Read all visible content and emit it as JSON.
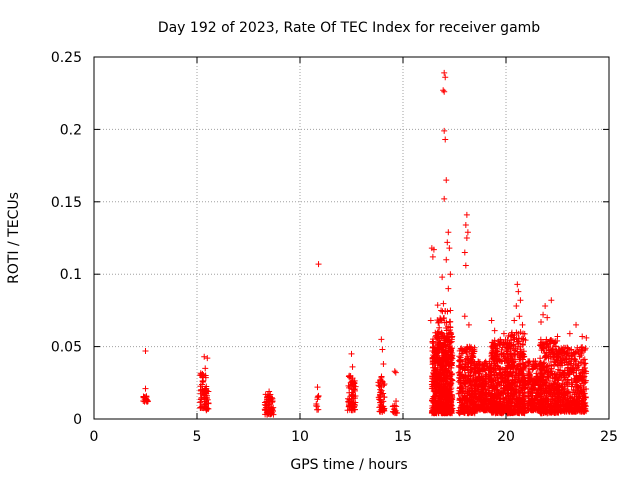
{
  "chart_data": {
    "type": "scatter",
    "title": "Day 192 of 2023, Rate Of TEC Index for receiver gamb",
    "xlabel": "GPS time / hours",
    "ylabel": "ROTI / TECUs",
    "xlim": [
      0,
      25
    ],
    "ylim": [
      0,
      0.25
    ],
    "x_ticks": [
      0,
      5,
      10,
      15,
      20,
      25
    ],
    "x_tick_labels": [
      "0",
      "5",
      "10",
      "15",
      "20",
      "25"
    ],
    "y_ticks": [
      0,
      0.05,
      0.1,
      0.15,
      0.2,
      0.25
    ],
    "y_tick_labels": [
      "0",
      "0.05",
      "0.1",
      "0.15",
      "0.2",
      "0.25"
    ],
    "grid": true,
    "marker": "+",
    "color": "#ff0000",
    "outliers": [
      [
        2.5,
        0.047
      ],
      [
        2.5,
        0.021
      ],
      [
        2.45,
        0.015
      ],
      [
        2.55,
        0.013
      ],
      [
        5.35,
        0.043
      ],
      [
        5.5,
        0.042
      ],
      [
        5.4,
        0.035
      ],
      [
        8.5,
        0.019
      ],
      [
        10.9,
        0.107
      ],
      [
        10.85,
        0.022
      ],
      [
        10.9,
        0.016
      ],
      [
        12.5,
        0.045
      ],
      [
        12.55,
        0.036
      ],
      [
        13.95,
        0.055
      ],
      [
        14.0,
        0.048
      ],
      [
        14.05,
        0.038
      ],
      [
        13.9,
        0.027
      ],
      [
        14.6,
        0.033
      ],
      [
        14.65,
        0.032
      ],
      [
        16.4,
        0.118
      ],
      [
        16.45,
        0.112
      ],
      [
        16.5,
        0.117
      ],
      [
        16.35,
        0.068
      ],
      [
        17.0,
        0.239
      ],
      [
        17.05,
        0.236
      ],
      [
        16.95,
        0.227
      ],
      [
        17.0,
        0.226
      ],
      [
        17.0,
        0.199
      ],
      [
        17.05,
        0.193
      ],
      [
        17.1,
        0.165
      ],
      [
        17.0,
        0.152
      ],
      [
        17.2,
        0.129
      ],
      [
        17.15,
        0.122
      ],
      [
        17.25,
        0.118
      ],
      [
        17.1,
        0.11
      ],
      [
        17.3,
        0.1
      ],
      [
        16.9,
        0.098
      ],
      [
        17.2,
        0.09
      ],
      [
        18.1,
        0.141
      ],
      [
        18.05,
        0.134
      ],
      [
        18.15,
        0.129
      ],
      [
        18.1,
        0.125
      ],
      [
        18.0,
        0.115
      ],
      [
        18.05,
        0.106
      ],
      [
        18.2,
        0.065
      ],
      [
        18.0,
        0.071
      ],
      [
        19.3,
        0.068
      ],
      [
        19.45,
        0.061
      ],
      [
        19.9,
        0.059
      ],
      [
        20.55,
        0.093
      ],
      [
        20.6,
        0.088
      ],
      [
        20.7,
        0.082
      ],
      [
        20.5,
        0.078
      ],
      [
        20.65,
        0.071
      ],
      [
        20.8,
        0.065
      ],
      [
        20.4,
        0.068
      ],
      [
        21.7,
        0.067
      ],
      [
        21.8,
        0.072
      ],
      [
        21.9,
        0.078
      ],
      [
        22.0,
        0.07
      ],
      [
        22.2,
        0.082
      ],
      [
        22.5,
        0.057
      ],
      [
        23.1,
        0.059
      ],
      [
        23.4,
        0.065
      ],
      [
        23.7,
        0.057
      ],
      [
        23.9,
        0.056
      ]
    ],
    "clusters": [
      {
        "x": 2.5,
        "dx": 0.12,
        "ymin": 0.012,
        "ymax": 0.016,
        "n": 18
      },
      {
        "x": 5.3,
        "dx": 0.15,
        "ymin": 0.007,
        "ymax": 0.032,
        "n": 60
      },
      {
        "x": 5.5,
        "dx": 0.06,
        "ymin": 0.006,
        "ymax": 0.02,
        "n": 20
      },
      {
        "x": 8.5,
        "dx": 0.22,
        "ymin": 0.003,
        "ymax": 0.017,
        "n": 70
      },
      {
        "x": 10.85,
        "dx": 0.08,
        "ymin": 0.006,
        "ymax": 0.02,
        "n": 8
      },
      {
        "x": 12.5,
        "dx": 0.2,
        "ymin": 0.006,
        "ymax": 0.03,
        "n": 70
      },
      {
        "x": 13.95,
        "dx": 0.15,
        "ymin": 0.005,
        "ymax": 0.03,
        "n": 50
      },
      {
        "x": 14.6,
        "dx": 0.12,
        "ymin": 0.004,
        "ymax": 0.013,
        "n": 16
      },
      {
        "x": 16.9,
        "dx": 0.5,
        "ymin": 0.004,
        "ymax": 0.06,
        "n": 600
      },
      {
        "x": 17.0,
        "dx": 0.35,
        "ymin": 0.02,
        "ymax": 0.08,
        "n": 120
      },
      {
        "x": 18.1,
        "dx": 0.4,
        "ymin": 0.004,
        "ymax": 0.05,
        "n": 320
      },
      {
        "x": 18.9,
        "dx": 0.4,
        "ymin": 0.006,
        "ymax": 0.04,
        "n": 260
      },
      {
        "x": 19.7,
        "dx": 0.45,
        "ymin": 0.004,
        "ymax": 0.055,
        "n": 380
      },
      {
        "x": 20.5,
        "dx": 0.45,
        "ymin": 0.004,
        "ymax": 0.06,
        "n": 400
      },
      {
        "x": 21.4,
        "dx": 0.35,
        "ymin": 0.006,
        "ymax": 0.04,
        "n": 220
      },
      {
        "x": 22.1,
        "dx": 0.45,
        "ymin": 0.004,
        "ymax": 0.055,
        "n": 360
      },
      {
        "x": 23.2,
        "dx": 0.7,
        "ymin": 0.005,
        "ymax": 0.05,
        "n": 460
      }
    ]
  }
}
